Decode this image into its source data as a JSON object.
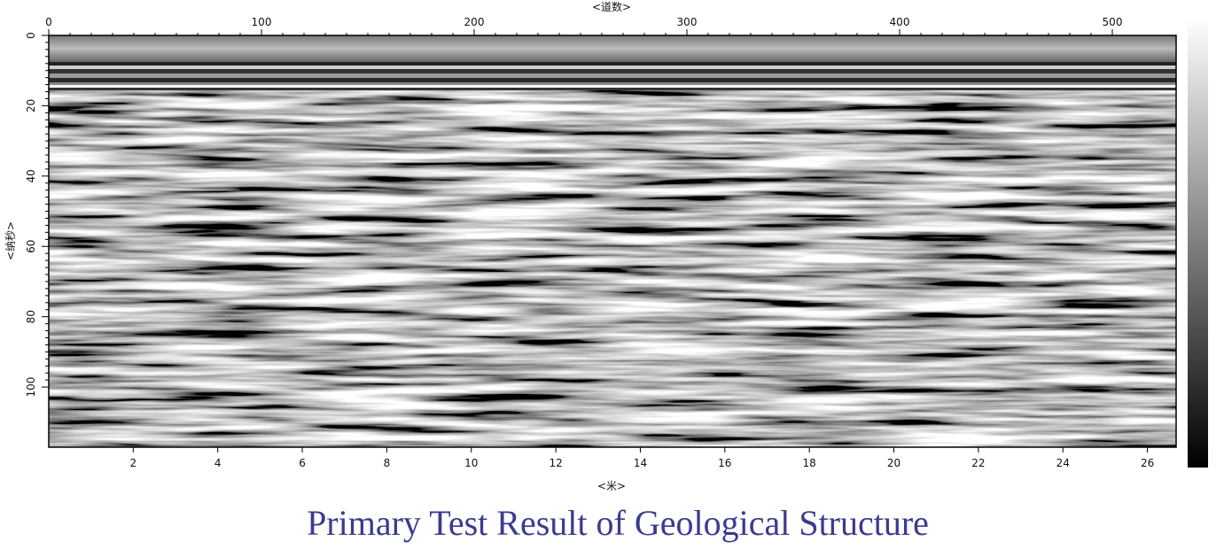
{
  "chart_data": {
    "type": "radargram",
    "title": "Primary Test Result of Geological Structure",
    "xlabel": "<米>",
    "x2label": "<道数>",
    "ylabel": "<纳秒>",
    "xlim": [
      0,
      26.68
    ],
    "xticks": [
      2,
      4,
      6,
      8,
      10,
      12,
      14,
      16,
      18,
      20,
      22,
      24,
      26
    ],
    "x2lim": [
      0,
      530
    ],
    "x2ticks": [
      0,
      100,
      200,
      300,
      400,
      500
    ],
    "ylim": [
      0,
      117.1
    ],
    "yticks": [
      0,
      20,
      40,
      60,
      80,
      100
    ],
    "colormap": "gray"
  }
}
